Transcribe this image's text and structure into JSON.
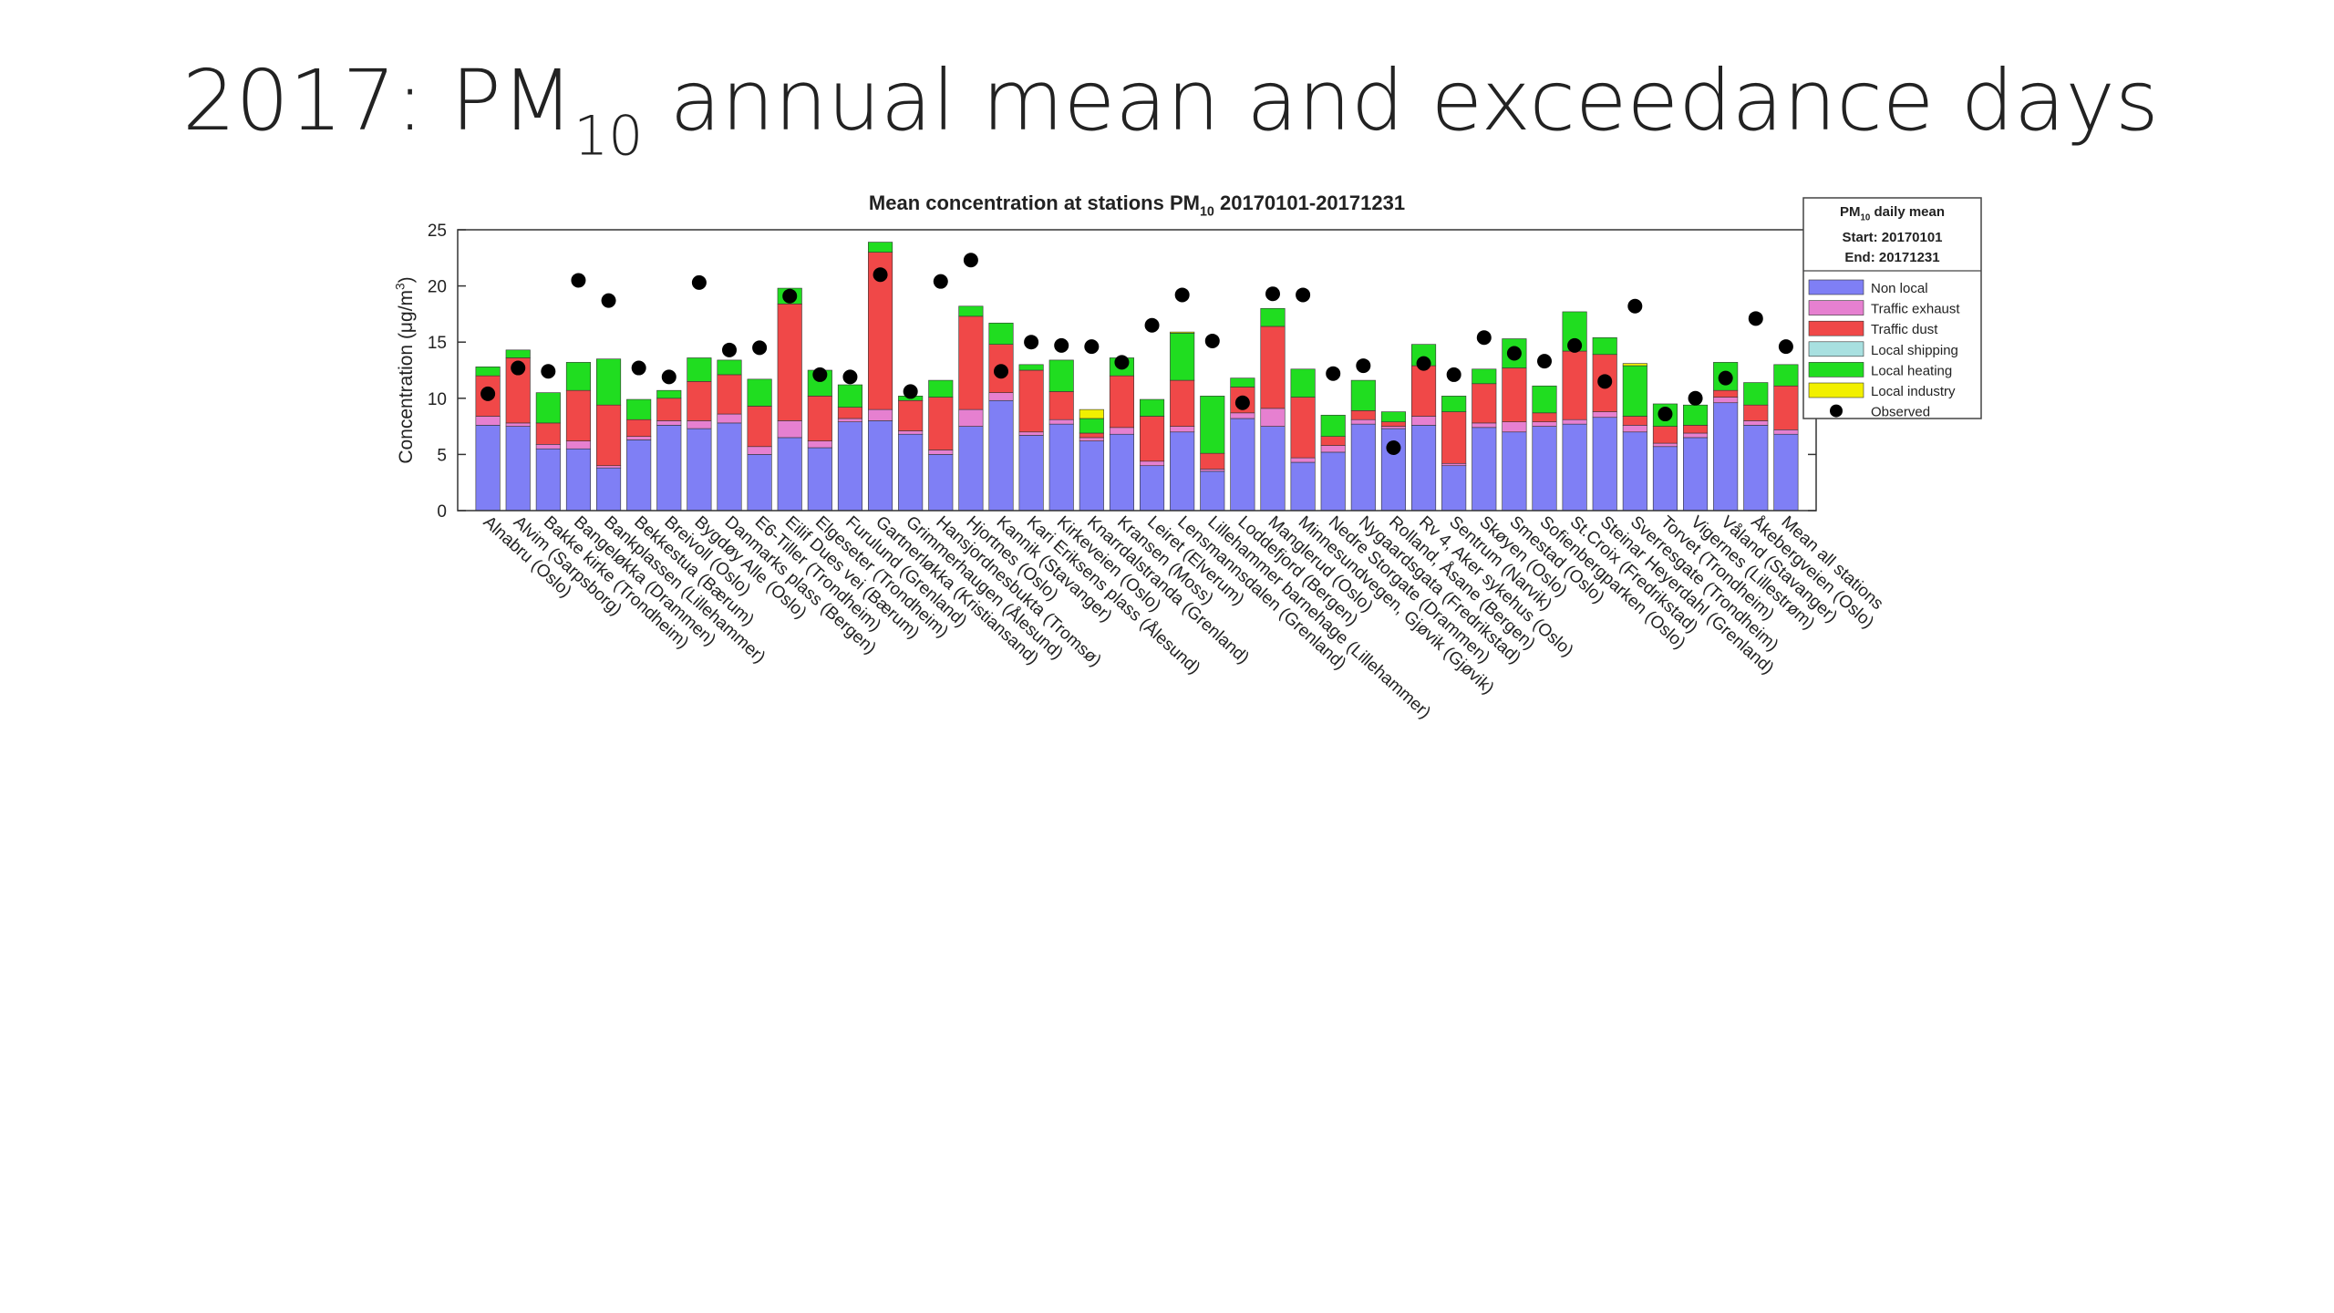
{
  "slide_title": {
    "text": "2017: PM",
    "subscript": "10",
    "rest": " annual mean and exceedance days"
  },
  "chart_data": {
    "type": "stacked_bar",
    "title": {
      "text": "Mean concentration at stations PM",
      "subscript": "10",
      "rest": " 20170101-20171231"
    },
    "ylabel": {
      "text": "Concentration (μg/m",
      "superscript": "3",
      "rest": ")"
    },
    "categories": [
      "Alnabru (Oslo)",
      "Alvim (Sarpsborg)",
      "Bakke kirke (Trondheim)",
      "Bangeløkka (Drammen)",
      "Bankplassen (Lillehammer)",
      "Bekkestua (Bærum)",
      "Breivoll (Oslo)",
      "Bygdøy Alle (Oslo)",
      "Danmarks plass (Bergen)",
      "E6-Tiller (Trondheim)",
      "Eilif Dues vei (Bærum)",
      "Elgeseter (Trondheim)",
      "Furulund (Grenland)",
      "Gartnerløkka (Kristiansand)",
      "Grimmerhaugen (Ålesund)",
      "Hansjordnesbukta (Tromsø)",
      "Hjortnes (Oslo)",
      "Kannik (Stavanger)",
      "Kari Eriksens plass (Ålesund)",
      "Kirkeveien (Oslo)",
      "Knarrdalstranda (Grenland)",
      "Kransen (Moss)",
      "Leiret (Elverum)",
      "Lensmannsdalen (Grenland)",
      "Lillehammer barnehage (Lillehammer)",
      "Loddefjord (Bergen)",
      "Manglerud (Oslo)",
      "Minnesundvegen, Gjøvik (Gjøvik)",
      "Nedre Storgate (Drammen)",
      "Nygaardsgata (Fredrikstad)",
      "Rolland, Åsane (Bergen)",
      "Rv 4, Aker sykehus (Oslo)",
      "Sentrum (Narvik)",
      "Skøyen (Oslo)",
      "Smestad (Oslo)",
      "Sofienbergparken (Oslo)",
      "St.Croix (Fredrikstad)",
      "Steinar Heyerdahl (Grenland)",
      "Sverresgate (Trondheim)",
      "Torvet (Trondheim)",
      "Vigernes (Lillestrøm)",
      "Våland (Stavanger)",
      "Åkebergveien (Oslo)",
      "Mean all stations"
    ],
    "series": [
      {
        "name": "Non local",
        "color": "#7f7ff5",
        "values": [
          7.6,
          7.5,
          5.5,
          5.5,
          3.8,
          6.3,
          7.6,
          7.3,
          7.8,
          5.0,
          6.5,
          5.6,
          7.9,
          8.0,
          6.8,
          5.0,
          7.5,
          9.8,
          6.7,
          7.7,
          6.2,
          6.8,
          4.0,
          7.0,
          3.5,
          8.2,
          7.5,
          4.3,
          5.2,
          7.7,
          7.3,
          7.6,
          4.0,
          7.4,
          7.0,
          7.5,
          7.7,
          8.3,
          7.0,
          5.7,
          6.5,
          9.6,
          7.6,
          6.8
        ]
      },
      {
        "name": "Traffic exhaust",
        "color": "#e680d0",
        "values": [
          0.8,
          0.3,
          0.4,
          0.7,
          0.2,
          0.3,
          0.4,
          0.7,
          0.8,
          0.7,
          1.5,
          0.6,
          0.3,
          1.0,
          0.3,
          0.4,
          1.5,
          0.7,
          0.3,
          0.4,
          0.3,
          0.6,
          0.4,
          0.5,
          0.2,
          0.5,
          1.6,
          0.4,
          0.6,
          0.4,
          0.2,
          0.8,
          0.2,
          0.4,
          0.9,
          0.4,
          0.4,
          0.5,
          0.6,
          0.3,
          0.4,
          0.5,
          0.4,
          0.4
        ]
      },
      {
        "name": "Traffic dust",
        "color": "#f04848",
        "values": [
          3.6,
          5.8,
          1.9,
          4.5,
          5.4,
          1.5,
          2.0,
          3.5,
          3.5,
          3.6,
          10.4,
          4.0,
          1.0,
          14.0,
          2.7,
          4.7,
          8.3,
          4.3,
          5.5,
          2.5,
          0.4,
          4.6,
          4.0,
          4.1,
          1.4,
          2.3,
          7.3,
          5.4,
          0.8,
          0.8,
          0.4,
          4.5,
          4.6,
          3.5,
          4.8,
          0.8,
          6.1,
          5.1,
          0.8,
          1.5,
          0.7,
          0.6,
          1.4,
          3.9
        ]
      },
      {
        "name": "Local shipping",
        "color": "#a8e0e0",
        "values": [
          0,
          0,
          0,
          0,
          0,
          0,
          0,
          0,
          0,
          0,
          0,
          0,
          0,
          0,
          0,
          0,
          0,
          0,
          0,
          0,
          0,
          0,
          0,
          0,
          0,
          0,
          0,
          0,
          0,
          0,
          0,
          0,
          0,
          0,
          0,
          0,
          0,
          0,
          0,
          0,
          0,
          0,
          0,
          0
        ]
      },
      {
        "name": "Local heating",
        "color": "#20dd20",
        "values": [
          0.8,
          0.7,
          2.7,
          2.5,
          4.1,
          1.8,
          0.7,
          2.1,
          1.3,
          2.4,
          1.4,
          2.3,
          2.0,
          0.9,
          0.4,
          1.5,
          0.9,
          1.9,
          0.5,
          2.8,
          1.3,
          1.6,
          1.5,
          4.2,
          5.1,
          0.8,
          1.6,
          2.5,
          1.9,
          2.7,
          0.9,
          1.9,
          1.4,
          1.3,
          2.6,
          2.4,
          3.5,
          1.5,
          4.5,
          2.0,
          1.8,
          2.5,
          2.0,
          1.9
        ]
      },
      {
        "name": "Local industry",
        "color": "#f2f000",
        "values": [
          0,
          0,
          0,
          0,
          0,
          0,
          0,
          0,
          0,
          0,
          0,
          0,
          0,
          0,
          0,
          0,
          0,
          0,
          0,
          0,
          0.8,
          0,
          0,
          0.1,
          0,
          0,
          0,
          0,
          0,
          0,
          0,
          0,
          0,
          0,
          0,
          0,
          0,
          0,
          0.2,
          0,
          0,
          0,
          0,
          0
        ]
      }
    ],
    "observed": {
      "name": "Observed",
      "color": "#000000",
      "values": [
        10.4,
        12.7,
        12.4,
        20.5,
        18.7,
        12.7,
        11.9,
        20.3,
        14.3,
        14.5,
        19.1,
        12.1,
        11.9,
        21.0,
        10.6,
        20.4,
        22.3,
        12.4,
        15.0,
        14.7,
        14.6,
        13.2,
        16.5,
        19.2,
        15.1,
        9.6,
        19.3,
        19.2,
        12.2,
        12.9,
        5.6,
        13.1,
        12.1,
        15.4,
        14.0,
        13.3,
        14.7,
        11.5,
        18.2,
        8.6,
        10.0,
        11.8,
        17.1,
        14.6
      ]
    },
    "ylim": [
      0,
      25
    ],
    "yticks": [
      0,
      5,
      10,
      15,
      20,
      25
    ],
    "legend_position": "northeast",
    "legend": {
      "title": {
        "text": "PM",
        "subscript": "10",
        "rest": " daily mean"
      },
      "start": "Start: 20170101",
      "end": "End:  20171231"
    }
  }
}
